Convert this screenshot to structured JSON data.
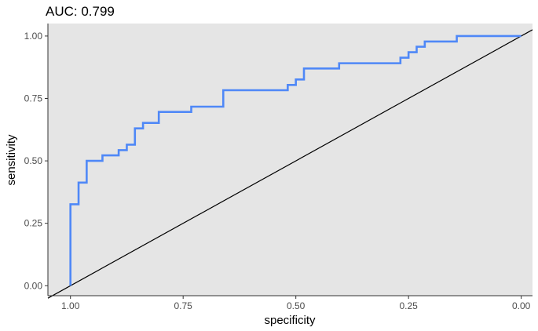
{
  "chart_data": {
    "type": "line",
    "title": "AUC: 0.799",
    "xlabel": "specificity",
    "ylabel": "sensitivity",
    "x_reversed": true,
    "xlim": [
      1.05,
      -0.025
    ],
    "ylim": [
      -0.04,
      1.05
    ],
    "x_ticks": [
      {
        "value": 1.0,
        "label": "1.00"
      },
      {
        "value": 0.75,
        "label": "0.75"
      },
      {
        "value": 0.5,
        "label": "0.50"
      },
      {
        "value": 0.25,
        "label": "0.25"
      },
      {
        "value": 0.0,
        "label": "0.00"
      }
    ],
    "y_ticks": [
      {
        "value": 0.0,
        "label": "0.00"
      },
      {
        "value": 0.25,
        "label": "0.25"
      },
      {
        "value": 0.5,
        "label": "0.50"
      },
      {
        "value": 0.75,
        "label": "0.75"
      },
      {
        "value": 1.0,
        "label": "1.00"
      }
    ],
    "grid": false,
    "legend": "none",
    "colors": {
      "panel_background": "#e5e5e5",
      "roc_curve": "#4f88f7",
      "reference_line": "#000000",
      "axis_line": "#333333",
      "tick_text": "#4d4d4d"
    },
    "series": [
      {
        "kind": "step",
        "x": [
          1.0,
          1.0,
          0.982,
          0.982,
          0.964,
          0.964,
          0.929,
          0.929,
          0.893,
          0.893,
          0.875,
          0.875,
          0.857,
          0.857,
          0.839,
          0.839,
          0.804,
          0.804,
          0.732,
          0.732,
          0.661,
          0.661,
          0.518,
          0.518,
          0.5,
          0.5,
          0.482,
          0.482,
          0.404,
          0.404,
          0.268,
          0.268,
          0.25,
          0.25,
          0.232,
          0.232,
          0.214,
          0.214,
          0.143,
          0.143,
          0.0
        ],
        "y": [
          0.0,
          0.326,
          0.326,
          0.413,
          0.413,
          0.5,
          0.5,
          0.522,
          0.522,
          0.543,
          0.543,
          0.565,
          0.565,
          0.63,
          0.63,
          0.652,
          0.652,
          0.696,
          0.696,
          0.717,
          0.717,
          0.783,
          0.783,
          0.804,
          0.804,
          0.826,
          0.826,
          0.87,
          0.87,
          0.891,
          0.891,
          0.913,
          0.913,
          0.935,
          0.935,
          0.957,
          0.957,
          0.978,
          0.978,
          1.0,
          1.0
        ]
      },
      {
        "kind": "reference",
        "x": [
          1.05,
          -0.025
        ],
        "y": [
          -0.05,
          1.025
        ]
      }
    ]
  }
}
